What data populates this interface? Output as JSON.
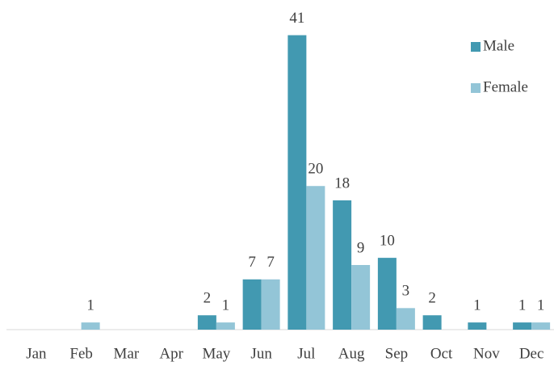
{
  "chart_data": {
    "type": "bar",
    "categories": [
      "Jan",
      "Feb",
      "Mar",
      "Apr",
      "May",
      "Jun",
      "Jul",
      "Aug",
      "Sep",
      "Oct",
      "Nov",
      "Dec"
    ],
    "series": [
      {
        "name": "Male",
        "color": "#4299b1",
        "values": [
          null,
          null,
          null,
          null,
          2,
          7,
          41,
          18,
          10,
          2,
          1,
          1
        ]
      },
      {
        "name": "Female",
        "color": "#93c5d7",
        "values": [
          null,
          1,
          null,
          null,
          1,
          7,
          20,
          9,
          3,
          null,
          null,
          1
        ]
      }
    ],
    "ylim": [
      0,
      45
    ],
    "legend": "top-right"
  }
}
